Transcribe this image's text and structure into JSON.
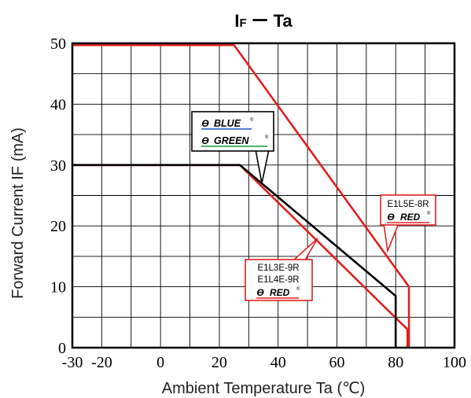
{
  "chart_data": {
    "type": "line",
    "title": "I F ー Ta",
    "title_parts": {
      "main": "I",
      "sub": "F",
      "dash": "ー",
      "tail": "Ta"
    },
    "xlabel": "Ambient Temperature  Ta (℃)",
    "ylabel": "Forward Current  IF (mA)",
    "xlim": [
      -30,
      100
    ],
    "ylim": [
      0,
      50
    ],
    "x_ticks": [
      -30,
      -20,
      0,
      20,
      40,
      60,
      80,
      100
    ],
    "x_tick_labels": [
      "-30",
      "-20",
      "0",
      "20",
      "40",
      "60",
      "80",
      "100"
    ],
    "y_ticks": [
      0,
      10,
      20,
      30,
      40,
      50
    ],
    "y_tick_labels": [
      "0",
      "10",
      "20",
      "30",
      "40",
      "50"
    ],
    "grid": true,
    "series": [
      {
        "color": "#e02020",
        "points": [
          [
            -30,
            49.7
          ],
          [
            25,
            49.7
          ],
          [
            84.5,
            10
          ],
          [
            84.5,
            0
          ]
        ]
      },
      {
        "color": "#e02020",
        "points": [
          [
            -30,
            30
          ],
          [
            27,
            30
          ],
          [
            84,
            3
          ],
          [
            84,
            0
          ]
        ]
      },
      {
        "color": "#000000",
        "points": [
          [
            -30,
            30
          ],
          [
            27,
            30
          ],
          [
            80,
            8.5
          ],
          [
            80,
            0
          ]
        ]
      }
    ],
    "annotations": [
      {
        "lines": [
          "E1L5E-8R",
          "RED"
        ]
      },
      {
        "lines": [
          "E1L3E-9R",
          "E1L4E-9R",
          "RED"
        ]
      },
      {
        "lines": [
          "BLUE",
          "GREEN"
        ]
      }
    ],
    "logo_symbol": "Ɵ",
    "registered_symbol": "®"
  }
}
